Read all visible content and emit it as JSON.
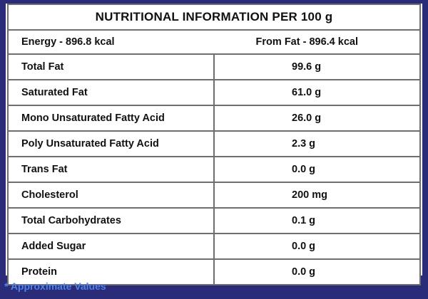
{
  "title": "NUTRITIONAL INFORMATION PER 100 g",
  "energy": {
    "left": "Energy - 896.8 kcal",
    "right": "From Fat - 896.4 kcal"
  },
  "rows": [
    {
      "label": "Total Fat",
      "value": "99.6 g"
    },
    {
      "label": "Saturated Fat",
      "value": "61.0 g"
    },
    {
      "label": "Mono Unsaturated Fatty Acid",
      "value": "26.0 g"
    },
    {
      "label": "Poly Unsaturated Fatty Acid",
      "value": "2.3 g"
    },
    {
      "label": "Trans Fat",
      "value": "0.0 g"
    },
    {
      "label": "Cholesterol",
      "value": "200 mg"
    },
    {
      "label": "Total Carbohydrates",
      "value": "0.1 g"
    },
    {
      "label": "Added Sugar",
      "value": "0.0 g"
    },
    {
      "label": "Protein",
      "value": "0.0 g"
    }
  ],
  "footnote": "* Approximate Values",
  "colors": {
    "background": "#2a2c7a",
    "footnote": "#4f82e8",
    "border": "#6e6e6e"
  }
}
